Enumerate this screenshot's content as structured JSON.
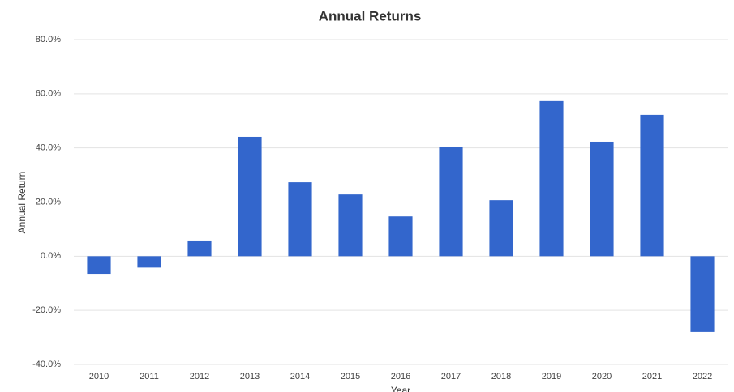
{
  "chart_data": {
    "type": "bar",
    "title": "Annual Returns",
    "x_label": "Year",
    "y_label": "Annual Return",
    "categories": [
      "2010",
      "2011",
      "2012",
      "2013",
      "2014",
      "2015",
      "2016",
      "2017",
      "2018",
      "2019",
      "2020",
      "2021",
      "2022"
    ],
    "values": [
      -6.5,
      -4.2,
      5.8,
      44.1,
      27.3,
      22.8,
      14.7,
      40.5,
      20.7,
      57.3,
      42.3,
      52.2,
      -28.0
    ],
    "color": "#3366cc",
    "ylim": [
      -40,
      80
    ],
    "yticks": [
      {
        "value": -40,
        "label": "-40.0%"
      },
      {
        "value": -20,
        "label": "-20.0%"
      },
      {
        "value": 0,
        "label": "0.0%"
      },
      {
        "value": 20,
        "label": "20.0%"
      },
      {
        "value": 40,
        "label": "40.0%"
      },
      {
        "value": 60,
        "label": "60.0%"
      },
      {
        "value": 80,
        "label": "80.0%"
      }
    ],
    "grid": true
  }
}
